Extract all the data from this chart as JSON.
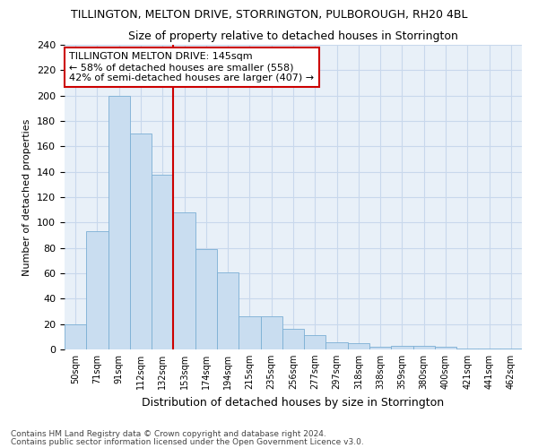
{
  "title": "TILLINGTON, MELTON DRIVE, STORRINGTON, PULBOROUGH, RH20 4BL",
  "subtitle": "Size of property relative to detached houses in Storrington",
  "xlabel": "Distribution of detached houses by size in Storrington",
  "ylabel": "Number of detached properties",
  "categories": [
    "50sqm",
    "71sqm",
    "91sqm",
    "112sqm",
    "132sqm",
    "153sqm",
    "174sqm",
    "194sqm",
    "215sqm",
    "235sqm",
    "256sqm",
    "277sqm",
    "297sqm",
    "318sqm",
    "338sqm",
    "359sqm",
    "380sqm",
    "400sqm",
    "421sqm",
    "441sqm",
    "462sqm"
  ],
  "values": [
    20,
    93,
    200,
    170,
    138,
    108,
    79,
    61,
    26,
    26,
    16,
    11,
    6,
    5,
    2,
    3,
    3,
    2,
    1,
    1,
    1
  ],
  "bar_color": "#c9ddf0",
  "bar_edge_color": "#7bafd4",
  "vline_color": "#cc0000",
  "annotation_text": "TILLINGTON MELTON DRIVE: 145sqm\n← 58% of detached houses are smaller (558)\n42% of semi-detached houses are larger (407) →",
  "annotation_box_color": "#cc0000",
  "ylim": [
    0,
    240
  ],
  "yticks": [
    0,
    20,
    40,
    60,
    80,
    100,
    120,
    140,
    160,
    180,
    200,
    220,
    240
  ],
  "grid_color": "#c8d8ec",
  "bg_color": "#e8f0f8",
  "footer1": "Contains HM Land Registry data © Crown copyright and database right 2024.",
  "footer2": "Contains public sector information licensed under the Open Government Licence v3.0."
}
